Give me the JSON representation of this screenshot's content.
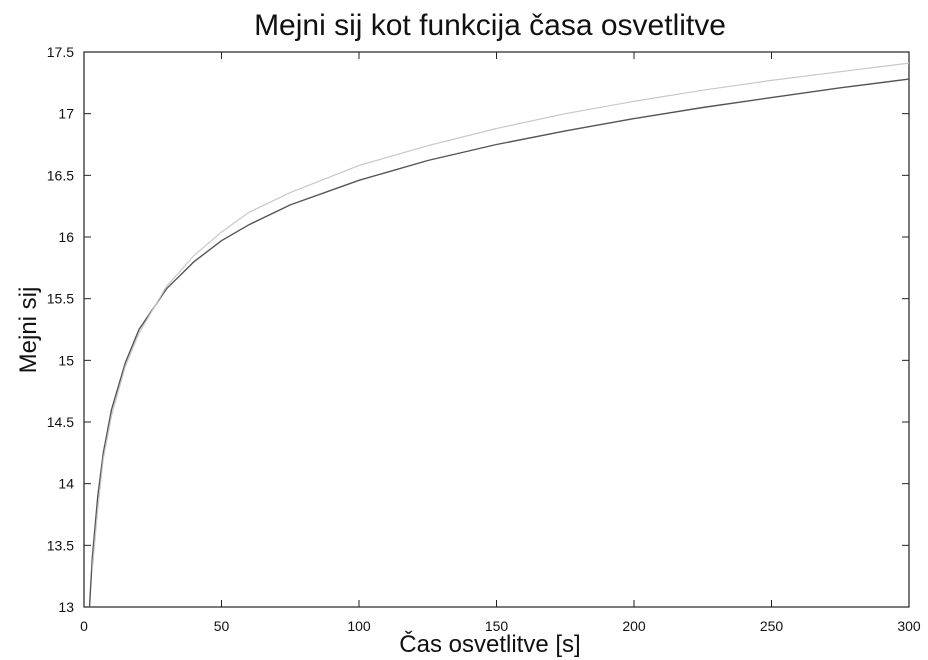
{
  "chart_data": {
    "type": "line",
    "title": "Mejni sij kot funkcija časa osvetlitve",
    "xlabel": "Čas osvetlitve [s]",
    "ylabel": "Mejni sij",
    "xlim": [
      0,
      300
    ],
    "ylim": [
      13,
      17.5
    ],
    "x_ticks": [
      0,
      50,
      100,
      150,
      200,
      250,
      300
    ],
    "y_ticks": [
      13,
      13.5,
      14,
      14.5,
      15,
      15.5,
      16,
      16.5,
      17,
      17.5
    ],
    "x_tick_labels": [
      "0",
      "50",
      "100",
      "150",
      "200",
      "250",
      "300"
    ],
    "y_tick_labels": [
      "13",
      "13.5",
      "14",
      "14.5",
      "15",
      "15.5",
      "16",
      "16.5",
      "17",
      "17.5"
    ],
    "grid": false,
    "legend": false,
    "series": [
      {
        "color": "#555555",
        "x": [
          2,
          3,
          5,
          7,
          10,
          15,
          20,
          30,
          40,
          50,
          60,
          75,
          100,
          125,
          150,
          175,
          200,
          225,
          250,
          275,
          300
        ],
        "y": [
          13.0,
          13.4,
          13.9,
          14.25,
          14.6,
          14.98,
          15.25,
          15.58,
          15.8,
          15.97,
          16.1,
          16.26,
          16.46,
          16.62,
          16.75,
          16.86,
          16.96,
          17.05,
          17.13,
          17.21,
          17.28
        ]
      },
      {
        "color": "#c8c8c8",
        "x": [
          3,
          5,
          7,
          10,
          15,
          20,
          30,
          40,
          50,
          60,
          75,
          100,
          125,
          150,
          175,
          200,
          225,
          250,
          275,
          300
        ],
        "y": [
          13.3,
          13.8,
          14.2,
          14.55,
          14.95,
          15.22,
          15.6,
          15.85,
          16.04,
          16.2,
          16.36,
          16.58,
          16.74,
          16.88,
          17.0,
          17.1,
          17.19,
          17.27,
          17.34,
          17.41
        ]
      }
    ]
  }
}
